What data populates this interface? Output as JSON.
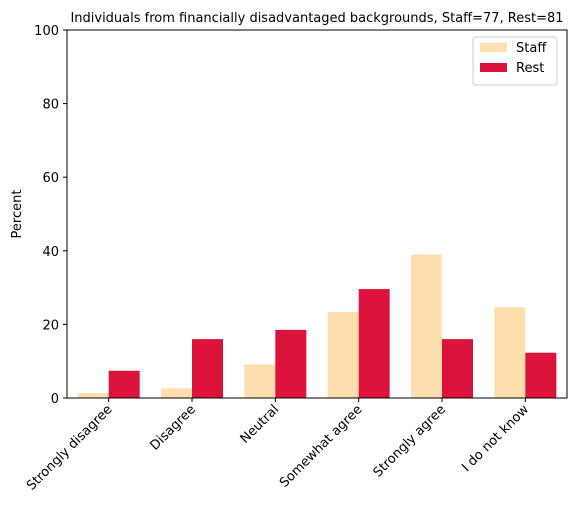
{
  "chart_data": {
    "type": "bar",
    "title": "Individuals from financially disadvantaged backgrounds, Staff=77, Rest=81",
    "xlabel": "",
    "ylabel": "Percent",
    "ylim": [
      0,
      100
    ],
    "yticks": [
      0,
      20,
      40,
      60,
      80,
      100
    ],
    "categories": [
      "Strongly disagree",
      "Disagree",
      "Neutral",
      "Somewhat agree",
      "Strongly agree",
      "I do not know"
    ],
    "series": [
      {
        "name": "Staff",
        "color": "#ffdead",
        "values": [
          1.3,
          2.6,
          9.1,
          23.4,
          39.0,
          24.7
        ]
      },
      {
        "name": "Rest",
        "color": "#dc143c",
        "values": [
          7.4,
          16.0,
          18.5,
          29.6,
          16.0,
          12.3
        ]
      }
    ],
    "legend_position": "top-right",
    "grid": false
  }
}
